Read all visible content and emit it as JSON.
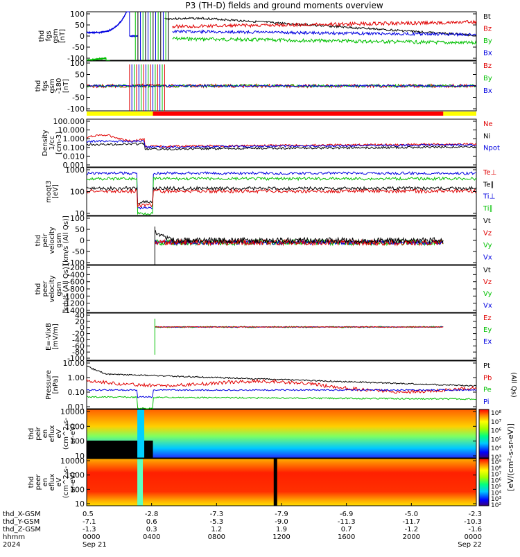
{
  "title": "P3 (TH-D) fields and ground moments overview",
  "colors": {
    "black": "#000000",
    "red": "#e00000",
    "green": "#00c000",
    "blue": "#0000e0",
    "yellow": "#ffff00",
    "bar_red": "#ff0000"
  },
  "panels": [
    {
      "id": "fgs",
      "ylabel": [
        "thd",
        "fgs",
        "gsm",
        "[nT]"
      ],
      "yticks": [
        "100",
        "50",
        "0",
        "-50",
        "-100"
      ],
      "legend": [
        {
          "text": "Bt",
          "color": "black"
        },
        {
          "text": "Bz",
          "color": "red"
        },
        {
          "text": "By",
          "color": "green"
        },
        {
          "text": "Bx",
          "color": "blue"
        }
      ]
    },
    {
      "id": "fgs_hp",
      "ylabel": [
        "thd",
        "fgs",
        "gsm",
        "-180",
        "[nT]"
      ],
      "yticks": [
        "100",
        "50",
        "0",
        "-50",
        "-100"
      ],
      "legend": [
        {
          "text": "Bz",
          "color": "red"
        },
        {
          "text": "By",
          "color": "green"
        },
        {
          "text": "Bx",
          "color": "blue"
        }
      ]
    },
    {
      "id": "density",
      "ylabel": [
        "Density",
        "1/cc",
        "[cm-3]"
      ],
      "yticks": [
        "100.000",
        "10.000",
        "1.000",
        "0.100",
        "0.010",
        "0.001"
      ],
      "legend": [
        {
          "text": "Ne",
          "color": "red"
        },
        {
          "text": "Ni",
          "color": "black"
        },
        {
          "text": "Npot",
          "color": "blue"
        }
      ]
    },
    {
      "id": "temp",
      "ylabel": [
        "moqt3",
        "[eV]"
      ],
      "yticks": [
        "1000",
        "100",
        "10"
      ],
      "legend": [
        {
          "text": "Te⊥",
          "color": "red"
        },
        {
          "text": "Te∥",
          "color": "black"
        },
        {
          "text": "Ti⊥",
          "color": "blue"
        },
        {
          "text": "Ti∥",
          "color": "green"
        }
      ]
    },
    {
      "id": "vi",
      "ylabel": [
        "thd",
        "peir",
        "velocity",
        "gsm",
        "[km/s (All Qs)]"
      ],
      "yticks": [
        "100",
        "50",
        "0",
        "-50",
        "-100"
      ],
      "legend": [
        {
          "text": "Vt",
          "color": "black"
        },
        {
          "text": "Vz",
          "color": "red"
        },
        {
          "text": "Vy",
          "color": "green"
        },
        {
          "text": "Vx",
          "color": "blue"
        }
      ]
    },
    {
      "id": "ve",
      "ylabel": [
        "thd",
        "peer",
        "velocity",
        "gsm",
        "[km/s (All Qs)]"
      ],
      "yticks": [
        "-200",
        "-400",
        "-600",
        "-800",
        "-1000",
        "-1200",
        "-1400"
      ],
      "legend": [
        {
          "text": "Vt",
          "color": "black"
        },
        {
          "text": "Vz",
          "color": "red"
        },
        {
          "text": "Vy",
          "color": "green"
        },
        {
          "text": "Vx",
          "color": "blue"
        }
      ]
    },
    {
      "id": "efield",
      "ylabel": [
        "E=-VixB",
        "[mV/m]"
      ],
      "yticks": [
        "40",
        "20",
        "0",
        "-20",
        "-40",
        "-60",
        "-80",
        "-100"
      ],
      "legend": [
        {
          "text": "Ez",
          "color": "red"
        },
        {
          "text": "Ey",
          "color": "green"
        },
        {
          "text": "Ex",
          "color": "blue"
        }
      ]
    },
    {
      "id": "pressure",
      "ylabel": [
        "Pressure",
        "[nPa]"
      ],
      "yticks": [
        "10.00",
        "1.00",
        "0.10",
        "0.01"
      ],
      "legend": [
        {
          "text": "Pt",
          "color": "black"
        },
        {
          "text": "Pb",
          "color": "red"
        },
        {
          "text": "Pe",
          "color": "green"
        },
        {
          "text": "Pi",
          "color": "blue"
        }
      ],
      "side_label": "(All Qs)"
    },
    {
      "id": "ion_spec",
      "ylabel": [
        "thd",
        "peir",
        "en",
        "eflux",
        "eV",
        "(cm^2-s-",
        "sr-eV)"
      ],
      "yticks": [
        "10000",
        "1000",
        "100",
        "10"
      ],
      "colorbar": [
        "10⁸",
        "10⁷",
        "10⁶",
        "10⁵",
        "10⁴",
        "10³"
      ]
    },
    {
      "id": "elec_spec",
      "ylabel": [
        "thd",
        "peer",
        "en",
        "eflux",
        "eV",
        "(cm^2-s-",
        "sr-eV)"
      ],
      "yticks": [
        "10000",
        "1000",
        "100",
        "10"
      ],
      "colorbar": [
        "10⁹",
        "10⁸",
        "10⁷",
        "10⁶",
        "10⁵",
        "10⁴",
        "10³",
        "10²"
      ]
    }
  ],
  "colorbar_label": "[eV/(cm²-s-sr-eV)]",
  "footer": {
    "rows": [
      {
        "label": "thd_X-GSM",
        "values": [
          "0.5",
          "-2.8",
          "-7.3",
          "-7.9",
          "-6.9",
          "-5.0",
          "-2.3"
        ]
      },
      {
        "label": "thd_Y-GSM",
        "values": [
          "-7.1",
          "0.6",
          "-5.3",
          "-9.0",
          "-11.3",
          "-11.7",
          "-10.3"
        ]
      },
      {
        "label": "thd_Z-GSM",
        "values": [
          "-1.3",
          "0.3",
          "1.2",
          "1.9",
          "0.7",
          "-1.2",
          "-1.6"
        ]
      },
      {
        "label": "hhmm",
        "values": [
          "0000",
          "0400",
          "0800",
          "1200",
          "1600",
          "2000",
          "0000"
        ]
      },
      {
        "label": "2024",
        "values": [
          "Sep 21",
          "",
          "",
          "",
          "",
          "",
          "Sep 22"
        ]
      }
    ]
  },
  "chart_data": [
    {
      "type": "line",
      "title": "P3 (TH-D) fields and ground moments overview",
      "ylim": [
        -100,
        100
      ],
      "x": [
        "0000",
        "0400",
        "0800",
        "1200",
        "1600",
        "2000",
        "0000"
      ],
      "series": [
        {
          "name": "Bt",
          "values": [
            0,
            0,
            25,
            25,
            25,
            25,
            25
          ]
        },
        {
          "name": "Bz",
          "values": [
            0,
            0,
            15,
            15,
            20,
            25,
            25
          ]
        },
        {
          "name": "By",
          "values": [
            -50,
            0,
            5,
            -5,
            -5,
            -5,
            -10
          ]
        },
        {
          "name": "Bx",
          "values": [
            0,
            0,
            10,
            10,
            10,
            10,
            10
          ]
        }
      ]
    },
    {
      "type": "line",
      "ylim": [
        -120,
        120
      ],
      "series": [
        {
          "name": "Bz",
          "values": [
            0,
            0,
            0,
            0,
            0,
            0,
            0
          ]
        },
        {
          "name": "By",
          "values": [
            0,
            0,
            0,
            0,
            0,
            0,
            0
          ]
        },
        {
          "name": "Bx",
          "values": [
            0,
            0,
            0,
            0,
            0,
            0,
            0
          ]
        }
      ]
    },
    {
      "type": "line",
      "ylim": [
        0.001,
        100
      ],
      "yscale": "log",
      "series": [
        {
          "name": "Ne",
          "values": [
            1,
            1,
            0.5,
            0.4,
            0.5,
            0.5,
            0.5
          ]
        },
        {
          "name": "Ni",
          "values": [
            0.5,
            0.5,
            0.4,
            0.4,
            0.4,
            0.4,
            0.4
          ]
        },
        {
          "name": "Npot",
          "values": [
            1,
            1,
            0.5,
            0.4,
            0.5,
            0.5,
            0.5
          ]
        }
      ]
    },
    {
      "type": "line",
      "ylim": [
        10,
        3000
      ],
      "yscale": "log",
      "series": [
        {
          "name": "Te⊥",
          "values": [
            1000,
            500,
            1000,
            1000,
            1000,
            1000,
            900
          ]
        },
        {
          "name": "Te∥",
          "values": [
            1200,
            500,
            1200,
            1100,
            1100,
            1100,
            1000
          ]
        },
        {
          "name": "Ti⊥",
          "values": [
            2500,
            1500,
            3000,
            3000,
            3000,
            3000,
            3000
          ]
        },
        {
          "name": "Ti∥",
          "values": [
            2000,
            1200,
            2500,
            2500,
            2500,
            2500,
            2500
          ]
        }
      ]
    },
    {
      "type": "line",
      "ylim": [
        -100,
        150
      ],
      "series": [
        {
          "name": "Vt",
          "values": [
            0,
            0,
            20,
            20,
            20,
            20,
            20
          ]
        },
        {
          "name": "Vz",
          "values": [
            0,
            0,
            0,
            0,
            0,
            0,
            0
          ]
        },
        {
          "name": "Vy",
          "values": [
            0,
            0,
            0,
            0,
            0,
            0,
            0
          ]
        },
        {
          "name": "Vx",
          "values": [
            0,
            0,
            0,
            0,
            0,
            0,
            0
          ]
        }
      ]
    },
    {
      "type": "line",
      "ylim": [
        -1400,
        0
      ],
      "series": []
    },
    {
      "type": "line",
      "ylim": [
        -100,
        40
      ],
      "series": [
        {
          "name": "Ez",
          "values": [
            0,
            0,
            0,
            0,
            0,
            0,
            0
          ]
        },
        {
          "name": "Ey",
          "values": [
            0,
            0,
            0,
            0,
            0,
            0,
            0
          ]
        },
        {
          "name": "Ex",
          "values": [
            0,
            0,
            0,
            0,
            0,
            0,
            0
          ]
        }
      ]
    },
    {
      "type": "line",
      "ylim": [
        0.005,
        30
      ],
      "yscale": "log",
      "series": [
        {
          "name": "Pt",
          "values": [
            3,
            2,
            0.6,
            0.3,
            0.2,
            0.2,
            0.2
          ]
        },
        {
          "name": "Pb",
          "values": [
            1,
            1,
            0.3,
            0.1,
            0.05,
            0.1,
            0.15
          ]
        },
        {
          "name": "Pe",
          "values": [
            0.05,
            0.05,
            0.05,
            0.05,
            0.05,
            0.04,
            0.04
          ]
        },
        {
          "name": "Pi",
          "values": [
            0.2,
            0.2,
            0.12,
            0.12,
            0.12,
            0.12,
            0.12
          ]
        }
      ]
    },
    {
      "type": "heatmap",
      "ylim": [
        5,
        30000
      ],
      "yscale": "log",
      "zlim": [
        1000,
        100000000
      ]
    },
    {
      "type": "heatmap",
      "ylim": [
        5,
        30000
      ],
      "yscale": "log",
      "zlim": [
        100,
        1000000000
      ]
    }
  ]
}
